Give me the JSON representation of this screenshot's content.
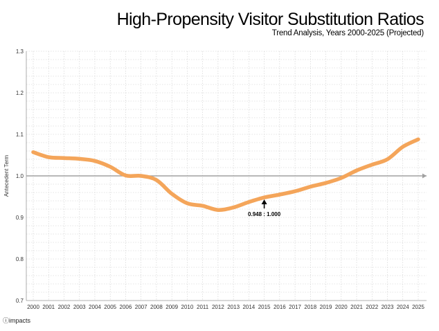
{
  "header": {
    "title": "High-Propensity Visitor Substitution Ratios",
    "subtitle": "Trend Analysis, Years 2000-2025 (Projected)"
  },
  "footer": {
    "logo": "impacts"
  },
  "chart_data": {
    "type": "line",
    "title": "High-Propensity Visitor Substitution Ratios",
    "subtitle": "Trend Analysis, Years 2000-2025 (Projected)",
    "xlabel": "",
    "ylabel": "Antecedent Term",
    "ylim": [
      0.7,
      1.3
    ],
    "yticks": [
      "0.7",
      "0.8",
      "0.9",
      "1.0",
      "1.1",
      "1.2",
      "1.3"
    ],
    "categories": [
      "2000",
      "2001",
      "2002",
      "2003",
      "2004",
      "2005",
      "2006",
      "2007",
      "2008",
      "2009",
      "2010",
      "2011",
      "2012",
      "2013",
      "2014",
      "2015",
      "2016",
      "2017",
      "2018",
      "2019",
      "2020",
      "2021",
      "2022",
      "2023",
      "2024",
      "2025"
    ],
    "series": [
      {
        "values": [
          1.057,
          1.045,
          1.043,
          1.041,
          1.036,
          1.022,
          1.001,
          1.0,
          0.99,
          0.957,
          0.934,
          0.928,
          0.918,
          0.924,
          0.937,
          0.948,
          0.955,
          0.963,
          0.974,
          0.983,
          0.995,
          1.013,
          1.027,
          1.04,
          1.07,
          1.088
        ]
      }
    ],
    "reference_line": {
      "value": 1.0
    },
    "annotation": {
      "text": "0.948 : 1.000",
      "x": "2015"
    },
    "grid": true,
    "colors": {
      "line": "#f4a55a",
      "reference": "#a0a0a0",
      "grid": "#cccccc"
    }
  }
}
